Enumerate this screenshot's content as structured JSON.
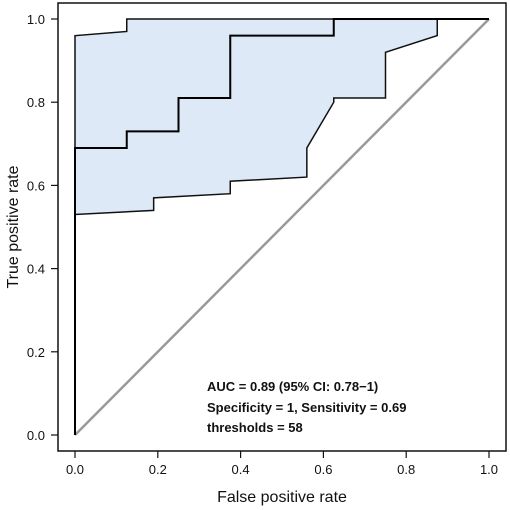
{
  "chart_data": {
    "type": "line",
    "title": "",
    "xlabel": "False positive rate",
    "ylabel": "True positive rate",
    "xlim": [
      0,
      1
    ],
    "ylim": [
      0,
      1
    ],
    "x_ticks": [
      0.0,
      0.2,
      0.4,
      0.6,
      0.8,
      1.0
    ],
    "y_ticks": [
      0.0,
      0.2,
      0.4,
      0.6,
      0.8,
      1.0
    ],
    "x_tick_labels": [
      "0.0",
      "0.2",
      "0.4",
      "0.6",
      "0.8",
      "1.0"
    ],
    "y_tick_labels": [
      "0.0",
      "0.2",
      "0.4",
      "0.6",
      "0.8",
      "1.0"
    ],
    "grid": false,
    "legend": "none",
    "colors": {
      "roc_line": "#000000",
      "ci_fill": "#dde9f6",
      "diagonal": "#999999"
    },
    "series": [
      {
        "role": "roc",
        "x": [
          0,
          0,
          0.125,
          0.125,
          0.25,
          0.25,
          0.375,
          0.375,
          0.625,
          0.625,
          1.0
        ],
        "y": [
          0,
          0.69,
          0.69,
          0.73,
          0.73,
          0.81,
          0.81,
          0.96,
          0.96,
          1.0,
          1.0
        ]
      },
      {
        "role": "ci-upper",
        "x": [
          0,
          0,
          0.125,
          0.125,
          0.875,
          0.875
        ],
        "y": [
          0.53,
          0.96,
          0.97,
          1.0,
          1.0,
          0.96
        ]
      },
      {
        "role": "ci-lower",
        "x": [
          0.875,
          0.75,
          0.75,
          0.625,
          0.625,
          0.56,
          0.56,
          0.375,
          0.375,
          0.19,
          0.19,
          0
        ],
        "y": [
          0.96,
          0.92,
          0.81,
          0.81,
          0.8,
          0.69,
          0.62,
          0.61,
          0.58,
          0.57,
          0.54,
          0.53
        ]
      },
      {
        "role": "reference",
        "x": [
          0,
          1
        ],
        "y": [
          0,
          1
        ]
      }
    ],
    "annotations": [
      "AUC = 0.89 (95% CI: 0.78−1)",
      "Specificity = 1, Sensitivity = 0.69",
      "thresholds = 58"
    ]
  }
}
